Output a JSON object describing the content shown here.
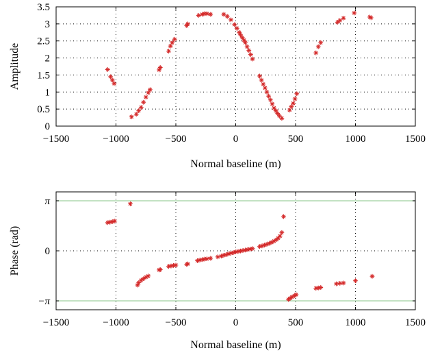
{
  "chart_data": [
    {
      "type": "scatter",
      "xlabel": "Normal baseline (m)",
      "ylabel": "Amplitude",
      "xlim": [
        -1500,
        1500
      ],
      "ylim": [
        0,
        3.5
      ],
      "xticks": [
        -1500,
        -1000,
        -500,
        0,
        500,
        1000,
        1500
      ],
      "xtick_labels": [
        "−1500",
        "−1000",
        "−500",
        "0",
        "500",
        "1000",
        "1500"
      ],
      "yticks": [
        0,
        0.5,
        1,
        1.5,
        2,
        2.5,
        3,
        3.5
      ],
      "ytick_labels": [
        "0",
        "0.5",
        "1",
        "1.5",
        "2",
        "2.5",
        "3",
        "3.5"
      ],
      "grid": true,
      "marker_color": "#d42a2a",
      "points": [
        [
          -1070,
          1.66
        ],
        [
          -1045,
          1.45
        ],
        [
          -1030,
          1.35
        ],
        [
          -1015,
          1.25
        ],
        [
          -870,
          0.27
        ],
        [
          -830,
          0.35
        ],
        [
          -810,
          0.45
        ],
        [
          -790,
          0.55
        ],
        [
          -770,
          0.7
        ],
        [
          -750,
          0.85
        ],
        [
          -730,
          0.98
        ],
        [
          -715,
          1.07
        ],
        [
          -640,
          1.65
        ],
        [
          -630,
          1.72
        ],
        [
          -560,
          2.2
        ],
        [
          -545,
          2.35
        ],
        [
          -530,
          2.45
        ],
        [
          -510,
          2.55
        ],
        [
          -410,
          2.95
        ],
        [
          -400,
          3.0
        ],
        [
          -310,
          3.25
        ],
        [
          -280,
          3.28
        ],
        [
          -260,
          3.3
        ],
        [
          -240,
          3.3
        ],
        [
          -210,
          3.28
        ],
        [
          -100,
          3.28
        ],
        [
          -70,
          3.22
        ],
        [
          -40,
          3.12
        ],
        [
          -10,
          2.98
        ],
        [
          10,
          2.87
        ],
        [
          30,
          2.75
        ],
        [
          40,
          2.68
        ],
        [
          55,
          2.6
        ],
        [
          70,
          2.52
        ],
        [
          80,
          2.45
        ],
        [
          95,
          2.33
        ],
        [
          110,
          2.22
        ],
        [
          125,
          2.1
        ],
        [
          140,
          1.97
        ],
        [
          200,
          1.47
        ],
        [
          215,
          1.35
        ],
        [
          230,
          1.23
        ],
        [
          245,
          1.12
        ],
        [
          260,
          1.0
        ],
        [
          275,
          0.88
        ],
        [
          290,
          0.77
        ],
        [
          305,
          0.65
        ],
        [
          320,
          0.53
        ],
        [
          335,
          0.45
        ],
        [
          350,
          0.37
        ],
        [
          365,
          0.3
        ],
        [
          385,
          0.23
        ],
        [
          450,
          0.47
        ],
        [
          465,
          0.57
        ],
        [
          480,
          0.67
        ],
        [
          495,
          0.8
        ],
        [
          510,
          0.95
        ],
        [
          670,
          2.15
        ],
        [
          690,
          2.33
        ],
        [
          710,
          2.45
        ],
        [
          850,
          3.05
        ],
        [
          870,
          3.1
        ],
        [
          900,
          3.17
        ],
        [
          990,
          3.32
        ],
        [
          1120,
          3.2
        ],
        [
          1130,
          3.18
        ]
      ]
    },
    {
      "type": "scatter",
      "xlabel": "Normal baseline (m)",
      "ylabel": "Phase (rad)",
      "xlim": [
        -1500,
        1500
      ],
      "ylim": [
        -3.7,
        3.7
      ],
      "xticks": [
        -1500,
        -1000,
        -500,
        0,
        500,
        1000,
        1500
      ],
      "xtick_labels": [
        "−1500",
        "−1000",
        "−500",
        "0",
        "500",
        "1000",
        "1500"
      ],
      "yticks": [
        3.14159,
        0,
        -3.14159
      ],
      "ytick_labels": [
        "π",
        "0",
        "−π"
      ],
      "reference_lines": [
        3.14159,
        -3.14159
      ],
      "reference_line_color": "#9fd09f",
      "grid": true,
      "marker_color": "#d42a2a",
      "points": [
        [
          -1070,
          1.77
        ],
        [
          -1050,
          1.8
        ],
        [
          -1030,
          1.83
        ],
        [
          -1010,
          1.87
        ],
        [
          -880,
          2.95
        ],
        [
          -820,
          -2.15
        ],
        [
          -810,
          -2.0
        ],
        [
          -790,
          -1.85
        ],
        [
          -770,
          -1.75
        ],
        [
          -750,
          -1.65
        ],
        [
          -730,
          -1.58
        ],
        [
          -640,
          -1.2
        ],
        [
          -630,
          -1.18
        ],
        [
          -560,
          -0.98
        ],
        [
          -540,
          -0.95
        ],
        [
          -520,
          -0.92
        ],
        [
          -500,
          -0.9
        ],
        [
          -410,
          -0.85
        ],
        [
          -400,
          -0.82
        ],
        [
          -320,
          -0.62
        ],
        [
          -300,
          -0.58
        ],
        [
          -280,
          -0.55
        ],
        [
          -260,
          -0.52
        ],
        [
          -240,
          -0.5
        ],
        [
          -210,
          -0.47
        ],
        [
          -150,
          -0.38
        ],
        [
          -120,
          -0.33
        ],
        [
          -100,
          -0.28
        ],
        [
          -80,
          -0.24
        ],
        [
          -60,
          -0.19
        ],
        [
          -40,
          -0.15
        ],
        [
          -20,
          -0.11
        ],
        [
          0,
          -0.07
        ],
        [
          20,
          -0.04
        ],
        [
          40,
          -0.01
        ],
        [
          60,
          0.02
        ],
        [
          80,
          0.05
        ],
        [
          100,
          0.08
        ],
        [
          120,
          0.11
        ],
        [
          140,
          0.14
        ],
        [
          200,
          0.27
        ],
        [
          220,
          0.31
        ],
        [
          240,
          0.36
        ],
        [
          260,
          0.41
        ],
        [
          280,
          0.47
        ],
        [
          300,
          0.53
        ],
        [
          320,
          0.61
        ],
        [
          340,
          0.7
        ],
        [
          355,
          0.8
        ],
        [
          370,
          0.93
        ],
        [
          385,
          1.15
        ],
        [
          400,
          2.15
        ],
        [
          440,
          -3.05
        ],
        [
          455,
          -2.98
        ],
        [
          470,
          -2.9
        ],
        [
          490,
          -2.82
        ],
        [
          505,
          -2.75
        ],
        [
          670,
          -2.35
        ],
        [
          690,
          -2.33
        ],
        [
          710,
          -2.3
        ],
        [
          840,
          -2.07
        ],
        [
          870,
          -2.04
        ],
        [
          900,
          -2.02
        ],
        [
          1000,
          -1.88
        ],
        [
          1140,
          -1.6
        ]
      ]
    }
  ]
}
